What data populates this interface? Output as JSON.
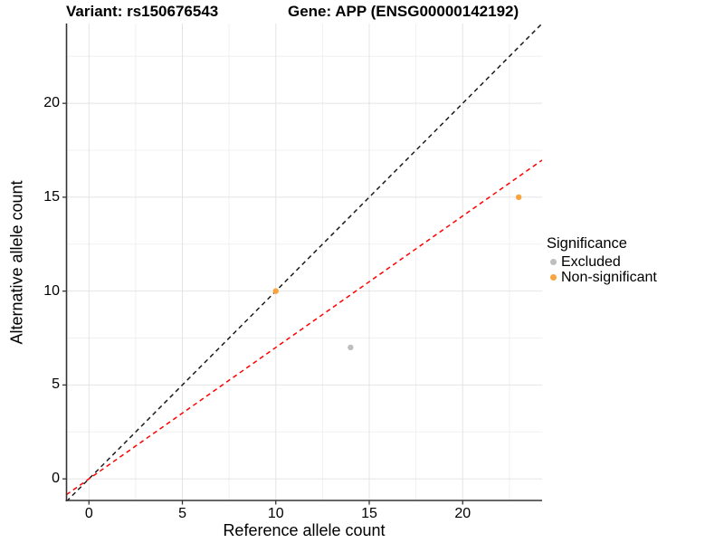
{
  "titles": {
    "left": "Variant: rs150676543",
    "right": "Gene: APP (ENSG00000142192)"
  },
  "axes": {
    "x": {
      "label": "Reference allele count",
      "ticks": [
        0,
        5,
        10,
        15,
        20
      ],
      "minor_ticks": [
        2.5,
        7.5,
        12.5,
        17.5,
        22.5
      ]
    },
    "y": {
      "label": "Alternative allele count",
      "ticks": [
        0,
        5,
        10,
        15,
        20
      ],
      "minor_ticks": [
        2.5,
        7.5,
        12.5,
        17.5,
        22.5
      ]
    }
  },
  "legend": {
    "title": "Significance",
    "items": [
      {
        "label": "Excluded",
        "color": "#BEBEBE"
      },
      {
        "label": "Non-significant",
        "color": "#F9A33C"
      }
    ]
  },
  "colors": {
    "excluded_point": "#BEBEBE",
    "non_significant_point": "#F9A33C",
    "identity_line": "#1A1A1A",
    "expected_ratio_line": "#FF0000"
  },
  "chart_data": {
    "type": "scatter",
    "title": "Variant: rs150676543   Gene: APP (ENSG00000142192)",
    "xlabel": "Reference allele count",
    "ylabel": "Alternative allele count",
    "xlim": [
      -1.2,
      24.25
    ],
    "ylim": [
      -1.15,
      24.25
    ],
    "grid": true,
    "legend_position": "right",
    "series": [
      {
        "name": "Excluded",
        "color": "#BEBEBE",
        "points": [
          {
            "x": 14,
            "y": 7
          }
        ]
      },
      {
        "name": "Non-significant",
        "color": "#F9A33C",
        "points": [
          {
            "x": 10,
            "y": 10
          },
          {
            "x": 23,
            "y": 15
          }
        ]
      }
    ],
    "reference_lines": [
      {
        "name": "identity-line",
        "slope": 1.0,
        "intercept": 0,
        "color": "#1A1A1A",
        "style": "dashed"
      },
      {
        "name": "expected-ratio-line",
        "slope": 0.7,
        "intercept": 0,
        "color": "#FF0000",
        "style": "dashed"
      }
    ]
  }
}
